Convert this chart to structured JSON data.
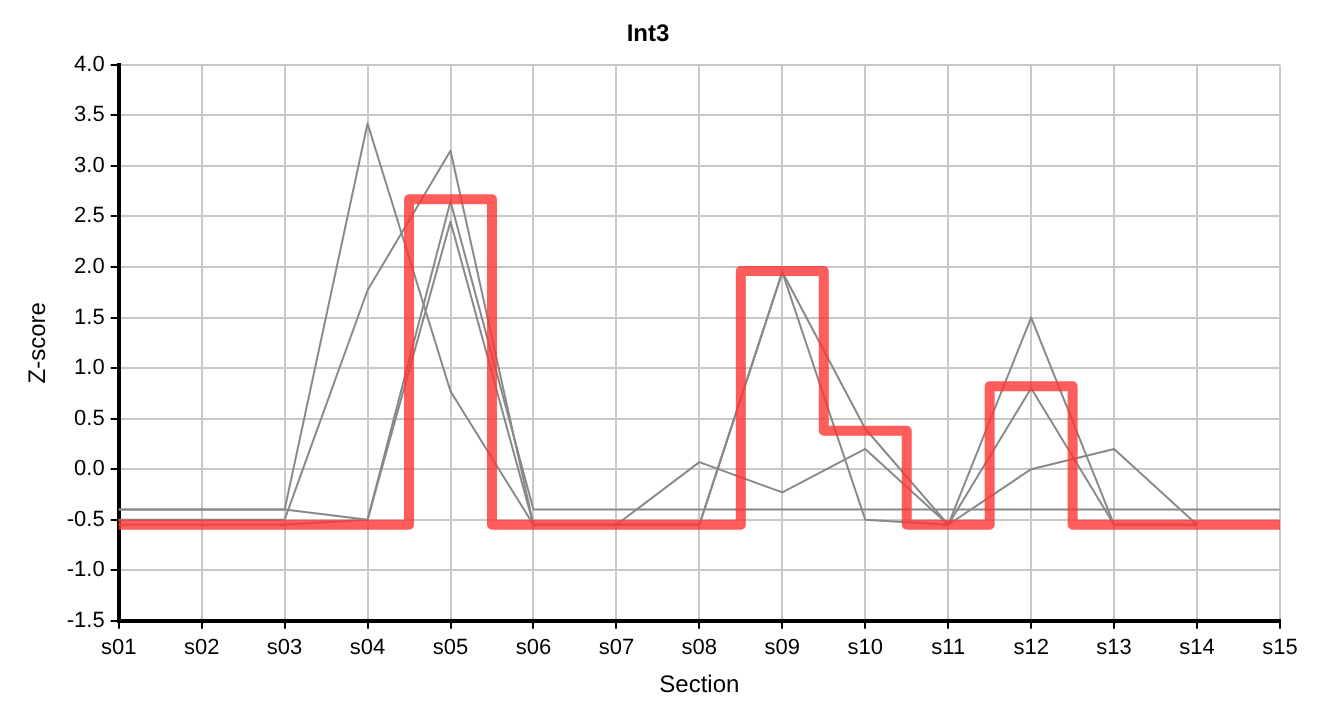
{
  "chart_data": {
    "type": "line",
    "title": "Int3",
    "xlabel": "Section",
    "ylabel": "Z-score",
    "categories": [
      "s01",
      "s02",
      "s03",
      "s04",
      "s05",
      "s06",
      "s07",
      "s08",
      "s09",
      "s10",
      "s11",
      "s12",
      "s13",
      "s14",
      "s15"
    ],
    "series": [
      {
        "color": "#888888",
        "values": [
          -0.4,
          -0.4,
          -0.4,
          3.42,
          0.77,
          -0.55,
          -0.55,
          0.07,
          -0.23,
          0.2,
          -0.55,
          0.0,
          0.2,
          -0.55,
          null
        ]
      },
      {
        "color": "#888888",
        "values": [
          -0.5,
          -0.5,
          -0.5,
          1.77,
          3.15,
          -0.55,
          -0.55,
          -0.55,
          1.95,
          0.4,
          -0.55,
          1.5,
          -0.55,
          -0.55,
          null
        ]
      },
      {
        "color": "#888888",
        "values": [
          -0.4,
          -0.4,
          -0.4,
          -0.5,
          2.65,
          -0.4,
          -0.4,
          -0.4,
          -0.4,
          -0.4,
          -0.4,
          -0.4,
          -0.4,
          -0.4,
          -0.4
        ]
      },
      {
        "color": "#888888",
        "values": [
          -0.55,
          -0.55,
          -0.55,
          -0.5,
          2.45,
          -0.55,
          -0.55,
          -0.55,
          1.95,
          -0.5,
          -0.55,
          0.8,
          -0.55,
          -0.55,
          null
        ]
      },
      {
        "type": "step",
        "color": "#ff3333",
        "values": [
          -0.55,
          -0.55,
          -0.55,
          -0.55,
          2.67,
          -0.55,
          -0.55,
          -0.55,
          1.96,
          0.38,
          -0.55,
          0.82,
          -0.55,
          -0.55,
          -0.55
        ]
      }
    ],
    "ylim": [
      -1.5,
      4.0
    ],
    "yticks": [
      {
        "value": -1.5,
        "label": "-1.5"
      },
      {
        "value": -1,
        "label": "-1.0"
      },
      {
        "value": -0.5,
        "label": "-0.5"
      },
      {
        "value": 0,
        "label": "0.0"
      },
      {
        "value": 0.5,
        "label": "0.5"
      },
      {
        "value": 1,
        "label": "1.0"
      },
      {
        "value": 1.5,
        "label": "1.5"
      },
      {
        "value": 2,
        "label": "2.0"
      },
      {
        "value": 2.5,
        "label": "2.5"
      },
      {
        "value": 3,
        "label": "3.0"
      },
      {
        "value": 3.5,
        "label": "3.5"
      },
      {
        "value": 4,
        "label": "4.0"
      }
    ],
    "grid": true,
    "legend": false,
    "marker": "none"
  }
}
